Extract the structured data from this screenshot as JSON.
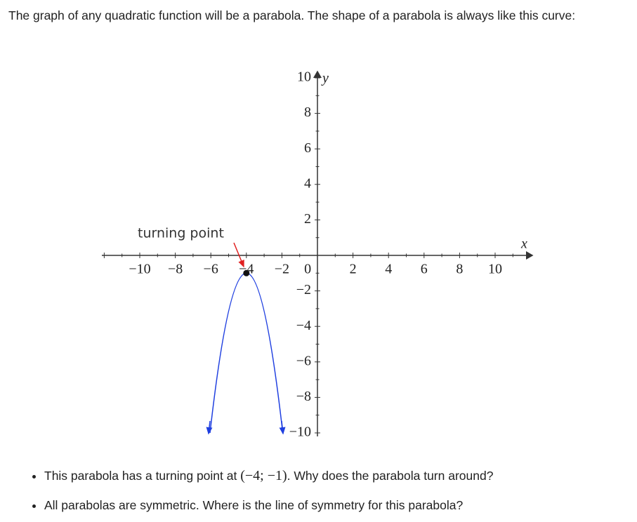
{
  "intro": "The graph of any quadratic function will be a parabola. The shape of a parabola is always like this curve:",
  "figure": {
    "x_axis_label": "x",
    "y_axis_label": "y",
    "x_tick_labels": [
      "−10",
      "−8",
      "−6",
      "−4",
      "−2",
      "0",
      "2",
      "4",
      "6",
      "8",
      "10"
    ],
    "y_tick_labels": [
      "10",
      "8",
      "6",
      "4",
      "2",
      "−2",
      "−4",
      "−6",
      "−8",
      "−10"
    ],
    "annotation": "turning point"
  },
  "bullets": [
    {
      "before": "This parabola has a turning point at ",
      "math": "(−4; −1)",
      "after": ". Why does the parabola turn around?"
    },
    {
      "before": "All parabolas are symmetric. Where is the line of symmetry for this parabola?",
      "math": "",
      "after": ""
    }
  ]
}
